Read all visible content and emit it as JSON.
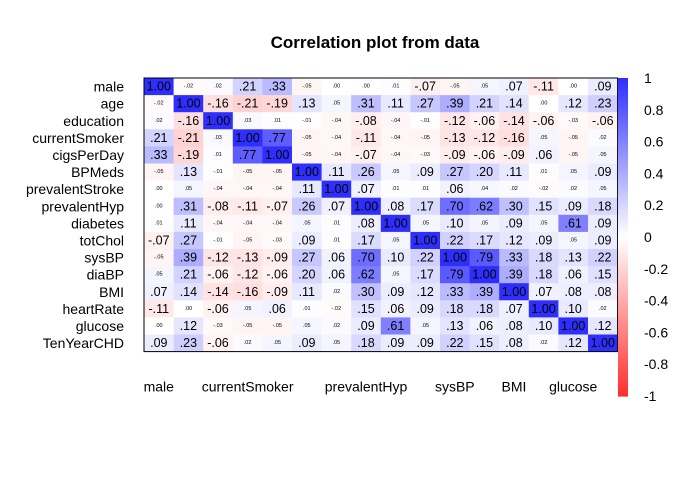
{
  "chart_data": {
    "type": "heatmap",
    "title": "Correlation plot from data",
    "variables": [
      "male",
      "age",
      "education",
      "currentSmoker",
      "cigsPerDay",
      "BPMeds",
      "prevalentStroke",
      "prevalentHyp",
      "diabetes",
      "totChol",
      "sysBP",
      "diaBP",
      "BMI",
      "heartRate",
      "glucose",
      "TenYearCHD"
    ],
    "x_tick_labels": [
      "male",
      "currentSmoker",
      "prevalentHyp",
      "sysBP",
      "BMI",
      "glucose"
    ],
    "x_tick_indices": [
      0,
      3,
      7,
      10,
      12,
      14
    ],
    "matrix": [
      [
        1.0,
        -0.02,
        0.02,
        0.21,
        0.33,
        -0.05,
        0.0,
        0.0,
        0.01,
        -0.07,
        -0.05,
        0.05,
        0.07,
        -0.11,
        0.0,
        0.09
      ],
      [
        -0.02,
        1.0,
        -0.16,
        -0.21,
        -0.19,
        0.13,
        0.05,
        0.31,
        0.11,
        0.27,
        0.39,
        0.21,
        0.14,
        0.0,
        0.12,
        0.23
      ],
      [
        0.02,
        -0.16,
        1.0,
        0.03,
        0.01,
        -0.01,
        -0.04,
        -0.08,
        -0.04,
        -0.01,
        -0.12,
        -0.06,
        -0.14,
        -0.06,
        -0.03,
        -0.06
      ],
      [
        0.21,
        -0.21,
        0.03,
        1.0,
        0.77,
        -0.05,
        -0.04,
        -0.11,
        -0.04,
        -0.05,
        -0.13,
        -0.12,
        -0.16,
        0.05,
        -0.05,
        0.02
      ],
      [
        0.33,
        -0.19,
        0.01,
        0.77,
        1.0,
        -0.05,
        -0.04,
        -0.07,
        -0.04,
        -0.03,
        -0.09,
        -0.06,
        -0.09,
        0.06,
        -0.05,
        0.05
      ],
      [
        -0.05,
        0.13,
        -0.01,
        -0.05,
        -0.05,
        1.0,
        0.11,
        0.26,
        0.05,
        0.09,
        0.27,
        0.2,
        0.11,
        0.01,
        0.05,
        0.09
      ],
      [
        0.0,
        0.05,
        -0.04,
        -0.04,
        -0.04,
        0.11,
        1.0,
        0.07,
        0.01,
        0.01,
        0.06,
        0.04,
        0.02,
        -0.02,
        0.02,
        0.05
      ],
      [
        0.0,
        0.31,
        -0.08,
        -0.11,
        -0.07,
        0.26,
        0.07,
        1.0,
        0.08,
        0.17,
        0.7,
        0.62,
        0.3,
        0.15,
        0.09,
        0.18
      ],
      [
        0.01,
        0.11,
        -0.04,
        -0.04,
        -0.04,
        0.05,
        0.01,
        0.08,
        1.0,
        0.05,
        0.1,
        0.05,
        0.09,
        0.05,
        0.61,
        0.09
      ],
      [
        -0.07,
        0.27,
        -0.01,
        -0.05,
        -0.03,
        0.09,
        0.01,
        0.17,
        0.05,
        1.0,
        0.22,
        0.17,
        0.12,
        0.09,
        0.05,
        0.09
      ],
      [
        -0.05,
        0.39,
        -0.12,
        -0.13,
        -0.09,
        0.27,
        0.06,
        0.7,
        0.1,
        0.22,
        1.0,
        0.79,
        0.33,
        0.18,
        0.13,
        0.22
      ],
      [
        0.05,
        0.21,
        -0.06,
        -0.12,
        -0.06,
        0.2,
        0.06,
        0.62,
        0.05,
        0.17,
        0.79,
        1.0,
        0.39,
        0.18,
        0.06,
        0.15
      ],
      [
        0.07,
        0.14,
        -0.14,
        -0.16,
        -0.09,
        0.11,
        0.02,
        0.3,
        0.09,
        0.12,
        0.33,
        0.39,
        1.0,
        0.07,
        0.08,
        0.08
      ],
      [
        -0.11,
        0.0,
        -0.06,
        0.05,
        0.06,
        0.01,
        -0.02,
        0.15,
        0.06,
        0.09,
        0.18,
        0.18,
        0.07,
        1.0,
        0.1,
        0.02
      ],
      [
        0.0,
        0.12,
        -0.03,
        -0.05,
        -0.05,
        0.05,
        0.02,
        0.09,
        0.61,
        0.05,
        0.13,
        0.06,
        0.08,
        0.1,
        1.0,
        0.12
      ],
      [
        0.09,
        0.23,
        -0.06,
        0.02,
        0.05,
        0.09,
        0.05,
        0.18,
        0.09,
        0.09,
        0.22,
        0.15,
        0.08,
        0.02,
        0.12,
        1.0
      ]
    ],
    "color_scale": {
      "low": "#FF2E2E",
      "mid": "#FFFFFF",
      "high": "#2E2EFF",
      "range": [
        -1,
        1
      ]
    },
    "colorbar_ticks": [
      "1",
      "0.8",
      "0.6",
      "0.4",
      "0.2",
      "0",
      "-0.2",
      "-0.4",
      "-0.6",
      "-0.8",
      "-1"
    ],
    "colorbar_tick_values": [
      1,
      0.8,
      0.6,
      0.4,
      0.2,
      0,
      -0.2,
      -0.4,
      -0.6,
      -0.8,
      -1
    ],
    "legend": "right",
    "grid": false
  }
}
